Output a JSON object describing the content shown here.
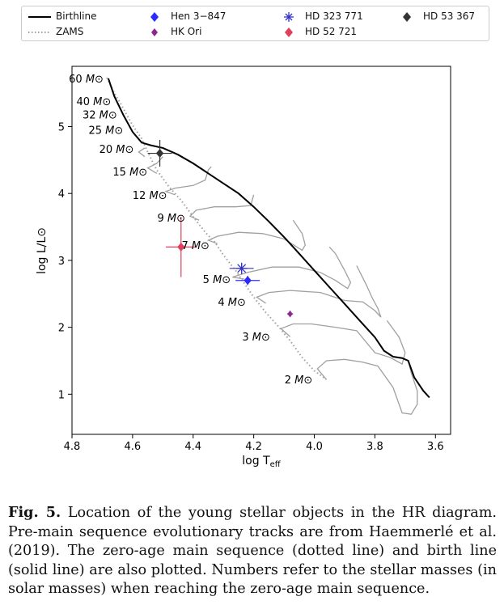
{
  "chart_data": {
    "type": "scatter",
    "xlabel": "log T",
    "xlabel_sub": "eff",
    "ylabel": "log L/L⊙",
    "xlim": [
      4.8,
      3.55
    ],
    "ylim": [
      0.4,
      5.9
    ],
    "x_ticks": [
      "4.8",
      "4.6",
      "4.4",
      "4.2",
      "4.0",
      "3.8",
      "3.6"
    ],
    "y_ticks": [
      "1",
      "2",
      "3",
      "4",
      "5"
    ],
    "legend": {
      "position": "top",
      "entries": [
        {
          "name": "Birthline",
          "kind": "line-solid"
        },
        {
          "name": "ZAMS",
          "kind": "line-dotted"
        },
        {
          "name": "Hen 3−847",
          "kind": "marker"
        },
        {
          "name": "HK Ori",
          "kind": "marker"
        },
        {
          "name": "HD 323 771",
          "kind": "marker"
        },
        {
          "name": "HD 52 721",
          "kind": "marker"
        },
        {
          "name": "HD 53 367",
          "kind": "marker"
        }
      ]
    },
    "colors": {
      "birthline": "#000000",
      "zams": "#a0a0a0",
      "tracks": "#a0a0a0",
      "hen": "#2b2bff",
      "hkori": "#8e258e",
      "hd323771": "#3232c8",
      "hd52721": "#e0405a",
      "hd53367": "#333333"
    },
    "birthline": [
      [
        4.68,
        5.72
      ],
      [
        4.66,
        5.45
      ],
      [
        4.63,
        5.17
      ],
      [
        4.6,
        4.92
      ],
      [
        4.57,
        4.76
      ],
      [
        4.54,
        4.72
      ],
      [
        4.5,
        4.68
      ],
      [
        4.45,
        4.58
      ],
      [
        4.4,
        4.45
      ],
      [
        4.35,
        4.3
      ],
      [
        4.3,
        4.15
      ],
      [
        4.25,
        4.0
      ],
      [
        4.2,
        3.8
      ],
      [
        4.15,
        3.58
      ],
      [
        4.1,
        3.35
      ],
      [
        4.05,
        3.1
      ],
      [
        4.0,
        2.85
      ],
      [
        3.95,
        2.6
      ],
      [
        3.9,
        2.35
      ],
      [
        3.85,
        2.1
      ],
      [
        3.8,
        1.85
      ],
      [
        3.77,
        1.65
      ],
      [
        3.74,
        1.56
      ],
      [
        3.71,
        1.54
      ],
      [
        3.69,
        1.5
      ],
      [
        3.67,
        1.25
      ],
      [
        3.64,
        1.05
      ],
      [
        3.62,
        0.95
      ]
    ],
    "zams": [
      [
        4.685,
        5.73
      ],
      [
        4.66,
        5.5
      ],
      [
        4.64,
        5.35
      ],
      [
        4.62,
        5.18
      ],
      [
        4.6,
        5.02
      ],
      [
        4.57,
        4.82
      ],
      [
        4.55,
        4.62
      ],
      [
        4.52,
        4.35
      ],
      [
        4.48,
        4.1
      ],
      [
        4.44,
        3.9
      ],
      [
        4.4,
        3.65
      ],
      [
        4.36,
        3.42
      ],
      [
        4.33,
        3.28
      ],
      [
        4.3,
        3.08
      ],
      [
        4.26,
        2.85
      ],
      [
        4.23,
        2.65
      ],
      [
        4.2,
        2.45
      ],
      [
        4.16,
        2.22
      ],
      [
        4.12,
        2.02
      ],
      [
        4.08,
        1.8
      ],
      [
        4.04,
        1.55
      ],
      [
        4.0,
        1.35
      ],
      [
        3.96,
        1.22
      ]
    ],
    "tracks": [
      {
        "mass": "2 M⊙",
        "points": [
          [
            3.96,
            1.22
          ],
          [
            3.99,
            1.38
          ],
          [
            3.96,
            1.5
          ],
          [
            3.9,
            1.52
          ],
          [
            3.84,
            1.48
          ],
          [
            3.79,
            1.42
          ],
          [
            3.74,
            1.1
          ],
          [
            3.71,
            0.72
          ],
          [
            3.68,
            0.7
          ],
          [
            3.66,
            0.85
          ],
          [
            3.66,
            1.05
          ],
          [
            3.68,
            1.32
          ],
          [
            3.69,
            1.5
          ]
        ]
      },
      {
        "mass": "3 M⊙",
        "points": [
          [
            4.08,
            1.86
          ],
          [
            4.11,
            1.98
          ],
          [
            4.07,
            2.05
          ],
          [
            4.01,
            2.05
          ],
          [
            3.93,
            2.0
          ],
          [
            3.86,
            1.95
          ],
          [
            3.8,
            1.62
          ],
          [
            3.75,
            1.55
          ],
          [
            3.71,
            1.45
          ],
          [
            3.7,
            1.62
          ],
          [
            3.72,
            1.85
          ],
          [
            3.76,
            2.1
          ]
        ]
      },
      {
        "mass": "4 M⊙",
        "points": [
          [
            4.16,
            2.36
          ],
          [
            4.19,
            2.45
          ],
          [
            4.15,
            2.52
          ],
          [
            4.08,
            2.55
          ],
          [
            3.98,
            2.52
          ],
          [
            3.9,
            2.4
          ],
          [
            3.84,
            2.38
          ],
          [
            3.8,
            2.25
          ],
          [
            3.78,
            2.15
          ],
          [
            3.79,
            2.28
          ],
          [
            3.81,
            2.45
          ],
          [
            3.83,
            2.65
          ],
          [
            3.86,
            2.92
          ]
        ]
      },
      {
        "mass": "5 M⊙",
        "points": [
          [
            4.23,
            2.72
          ],
          [
            4.27,
            2.75
          ],
          [
            4.22,
            2.82
          ],
          [
            4.14,
            2.9
          ],
          [
            4.05,
            2.9
          ],
          [
            3.98,
            2.82
          ],
          [
            3.93,
            2.7
          ],
          [
            3.89,
            2.58
          ],
          [
            3.88,
            2.67
          ],
          [
            3.9,
            2.85
          ],
          [
            3.93,
            3.1
          ],
          [
            3.95,
            3.2
          ]
        ]
      },
      {
        "mass": "7 M⊙",
        "points": [
          [
            4.32,
            3.25
          ],
          [
            4.35,
            3.3
          ],
          [
            4.32,
            3.36
          ],
          [
            4.25,
            3.42
          ],
          [
            4.17,
            3.4
          ],
          [
            4.1,
            3.32
          ],
          [
            4.04,
            3.15
          ],
          [
            4.03,
            3.23
          ],
          [
            4.04,
            3.4
          ],
          [
            4.07,
            3.6
          ]
        ]
      },
      {
        "mass": "9 M⊙",
        "points": [
          [
            4.38,
            3.6
          ],
          [
            4.41,
            3.66
          ],
          [
            4.39,
            3.75
          ],
          [
            4.33,
            3.8
          ],
          [
            4.26,
            3.8
          ],
          [
            4.21,
            3.82
          ],
          [
            4.2,
            3.98
          ]
        ]
      },
      {
        "mass": "12 M⊙",
        "points": [
          [
            4.46,
            3.98
          ],
          [
            4.49,
            4.03
          ],
          [
            4.46,
            4.08
          ],
          [
            4.4,
            4.12
          ],
          [
            4.36,
            4.2
          ],
          [
            4.35,
            4.35
          ],
          [
            4.34,
            4.4
          ]
        ]
      },
      {
        "mass": "15 M⊙",
        "points": [
          [
            4.52,
            4.3
          ],
          [
            4.55,
            4.38
          ],
          [
            4.52,
            4.45
          ],
          [
            4.5,
            4.55
          ]
        ]
      },
      {
        "mass": "20 M⊙",
        "points": [
          [
            4.56,
            4.55
          ],
          [
            4.58,
            4.62
          ],
          [
            4.56,
            4.68
          ]
        ]
      }
    ],
    "mass_labels": [
      {
        "text": "60",
        "unit": "M⊙",
        "at": [
          4.68,
          5.72
        ]
      },
      {
        "text": "40",
        "unit": "M⊙",
        "at": [
          4.655,
          5.38
        ]
      },
      {
        "text": "32",
        "unit": "M⊙",
        "at": [
          4.635,
          5.18
        ]
      },
      {
        "text": "25",
        "unit": "M⊙",
        "at": [
          4.615,
          4.95
        ]
      },
      {
        "text": "20",
        "unit": "M⊙",
        "at": [
          4.58,
          4.67
        ]
      },
      {
        "text": "15",
        "unit": "M⊙",
        "at": [
          4.535,
          4.33
        ]
      },
      {
        "text": "12",
        "unit": "M⊙",
        "at": [
          4.47,
          3.98
        ]
      },
      {
        "text": "9",
        "unit": "M⊙",
        "at": [
          4.41,
          3.64
        ]
      },
      {
        "text": "7",
        "unit": "M⊙",
        "at": [
          4.33,
          3.23
        ]
      },
      {
        "text": "5",
        "unit": "M⊙",
        "at": [
          4.26,
          2.72
        ]
      },
      {
        "text": "4",
        "unit": "M⊙",
        "at": [
          4.21,
          2.38
        ]
      },
      {
        "text": "3",
        "unit": "M⊙",
        "at": [
          4.13,
          1.86
        ]
      },
      {
        "text": "2",
        "unit": "M⊙",
        "at": [
          3.99,
          1.22
        ]
      }
    ],
    "stars": [
      {
        "name": "Hen 3−847",
        "logT": 4.22,
        "logL": 2.7,
        "err_T": [
          0.04,
          0.04
        ],
        "err_L": [
          0.07,
          0.07
        ],
        "marker": "diamond"
      },
      {
        "name": "HK Ori",
        "logT": 4.08,
        "logL": 2.2,
        "err_T": [
          0.01,
          0.01
        ],
        "err_L": [
          0.05,
          0.05
        ],
        "marker": "diamond"
      },
      {
        "name": "HD 323 771",
        "logT": 4.24,
        "logL": 2.88,
        "err_T": [
          0.04,
          0.04
        ],
        "err_L": [
          0.08,
          0.08
        ],
        "marker": "star"
      },
      {
        "name": "HD 52 721",
        "logT": 4.44,
        "logL": 3.2,
        "err_T": [
          0.05,
          0.05
        ],
        "err_L": [
          0.45,
          0.45
        ],
        "marker": "diamond"
      },
      {
        "name": "HD 53 367",
        "logT": 4.51,
        "logL": 4.6,
        "err_T": [
          0.04,
          0.04
        ],
        "err_L": [
          0.2,
          0.2
        ],
        "marker": "diamond"
      }
    ]
  },
  "caption": {
    "label": "Fig. 5.",
    "text": "Location of the young stellar objects in the HR diagram. Pre-main sequence evolutionary tracks are from Haemmerlé et al. (2019). The zero-age main sequence (dotted line) and birth line (solid line) are also plotted. Numbers refer to the stellar masses (in solar masses) when reaching the zero-age main sequence."
  }
}
